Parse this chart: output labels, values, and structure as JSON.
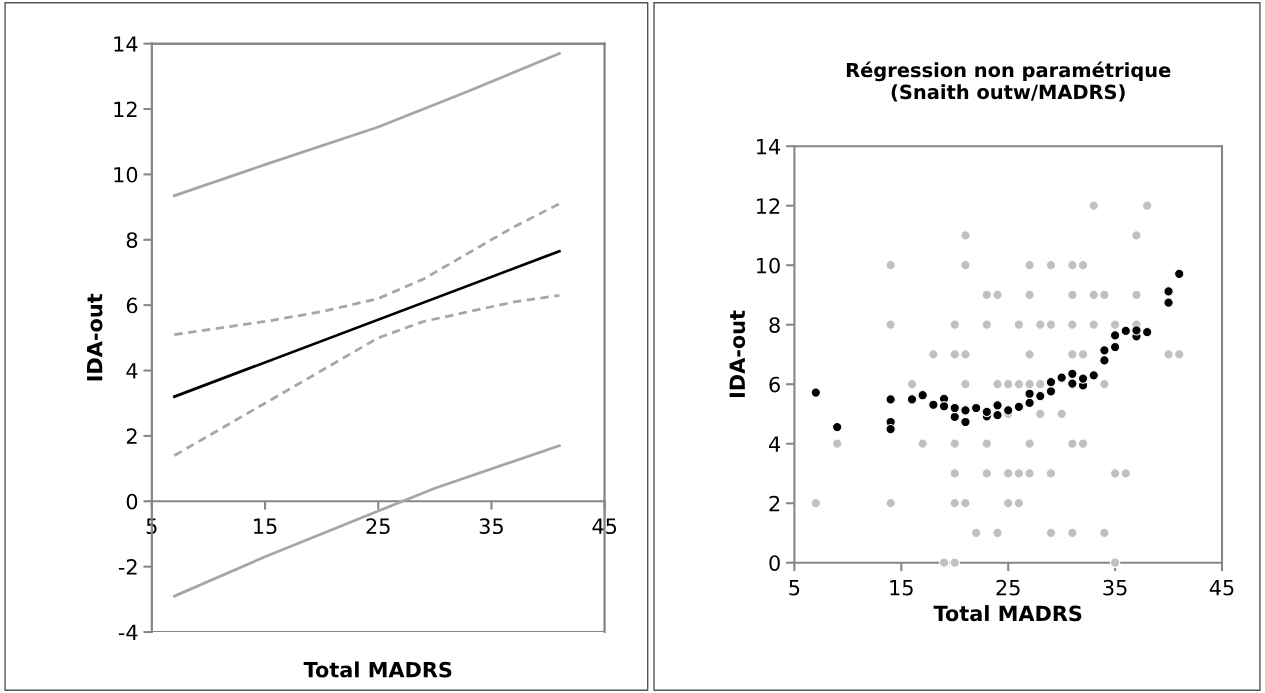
{
  "chart_data": [
    {
      "type": "line",
      "xlabel": "Total MADRS",
      "ylabel": "IDA-out",
      "xlim": [
        5,
        45
      ],
      "ylim": [
        -4,
        14
      ],
      "xticks": [
        5,
        15,
        25,
        35,
        45
      ],
      "yticks": [
        -4,
        -2,
        0,
        2,
        4,
        6,
        8,
        10,
        12,
        14
      ],
      "grid": false,
      "marker": "none",
      "series": [
        {
          "color": "#a6a6a6",
          "line_style": "solid",
          "x": [
            7,
            15,
            25,
            33,
            41
          ],
          "values": [
            9.35,
            10.3,
            11.45,
            12.55,
            13.7
          ]
        },
        {
          "color": "#a6a6a6",
          "line_style": "dashed",
          "x": [
            7,
            15,
            20,
            25,
            29,
            33,
            37,
            41
          ],
          "values": [
            5.1,
            5.5,
            5.8,
            6.2,
            6.8,
            7.6,
            8.4,
            9.1
          ]
        },
        {
          "color": "#000000",
          "line_style": "solid",
          "x": [
            7,
            41
          ],
          "values": [
            3.2,
            7.65
          ]
        },
        {
          "color": "#a6a6a6",
          "line_style": "dashed",
          "x": [
            7,
            11,
            15,
            20,
            25,
            29,
            33,
            37,
            41
          ],
          "values": [
            1.4,
            2.2,
            3.0,
            4.0,
            5.0,
            5.5,
            5.8,
            6.1,
            6.3
          ]
        },
        {
          "color": "#a6a6a6",
          "line_style": "solid",
          "x": [
            7,
            15,
            25,
            30,
            41
          ],
          "values": [
            -2.9,
            -1.7,
            -0.3,
            0.4,
            1.7
          ]
        }
      ]
    },
    {
      "type": "scatter",
      "title": "Régression non paramétrique\n(Snaith outw/MADRS)",
      "xlabel": "Total MADRS",
      "ylabel": "IDA-out",
      "xlim": [
        5,
        45
      ],
      "ylim": [
        0,
        14
      ],
      "xticks": [
        5,
        15,
        25,
        35,
        45
      ],
      "yticks": [
        0,
        2,
        4,
        6,
        8,
        10,
        12,
        14
      ],
      "grid": false,
      "marker": "circle",
      "series": [
        {
          "color": "#c0c0c0",
          "x": [
            7,
            9,
            14,
            14,
            14,
            16,
            17,
            18,
            19,
            20,
            20,
            20,
            20,
            20,
            20,
            21,
            21,
            21,
            21,
            21,
            22,
            23,
            23,
            23,
            23,
            24,
            24,
            24,
            25,
            25,
            25,
            25,
            26,
            26,
            26,
            26,
            27,
            27,
            27,
            27,
            27,
            27,
            28,
            28,
            28,
            29,
            29,
            29,
            29,
            30,
            31,
            31,
            31,
            31,
            31,
            31,
            32,
            32,
            32,
            33,
            33,
            33,
            34,
            34,
            34,
            35,
            35,
            35,
            36,
            37,
            37,
            37,
            38,
            40,
            41
          ],
          "values": [
            2,
            4,
            10,
            8,
            2,
            6,
            4,
            7,
            0,
            0,
            8,
            7,
            4,
            3,
            2,
            11,
            10,
            7,
            6,
            2,
            1,
            9,
            8,
            4,
            3,
            9,
            6,
            1,
            6,
            5,
            3,
            2,
            8,
            6,
            3,
            2,
            10,
            9,
            7,
            6,
            4,
            3,
            8,
            6,
            5,
            10,
            8,
            3,
            1,
            5,
            10,
            9,
            8,
            7,
            4,
            1,
            10,
            7,
            4,
            12,
            9,
            8,
            9,
            6,
            1,
            8,
            3,
            0,
            3,
            11,
            9,
            8,
            12,
            7,
            7
          ]
        },
        {
          "color": "#000000",
          "x": [
            7,
            9,
            14,
            14,
            14,
            16,
            17,
            18,
            19,
            19,
            20,
            20,
            21,
            21,
            22,
            23,
            23,
            24,
            24,
            25,
            26,
            27,
            27,
            28,
            29,
            29,
            30,
            31,
            31,
            32,
            32,
            33,
            34,
            34,
            35,
            35,
            36,
            37,
            37,
            38,
            40,
            40,
            41
          ],
          "values": [
            5.72,
            4.56,
            5.49,
            4.73,
            4.49,
            5.49,
            5.63,
            5.31,
            5.51,
            5.26,
            4.9,
            5.2,
            5.12,
            4.73,
            5.2,
            4.92,
            5.07,
            4.96,
            5.29,
            5.12,
            5.24,
            5.37,
            5.68,
            5.6,
            5.76,
            6.07,
            6.22,
            6.02,
            6.35,
            5.96,
            6.19,
            6.3,
            6.8,
            7.14,
            7.25,
            7.64,
            7.79,
            7.61,
            7.81,
            7.75,
            8.74,
            9.12,
            9.71
          ]
        }
      ]
    }
  ]
}
